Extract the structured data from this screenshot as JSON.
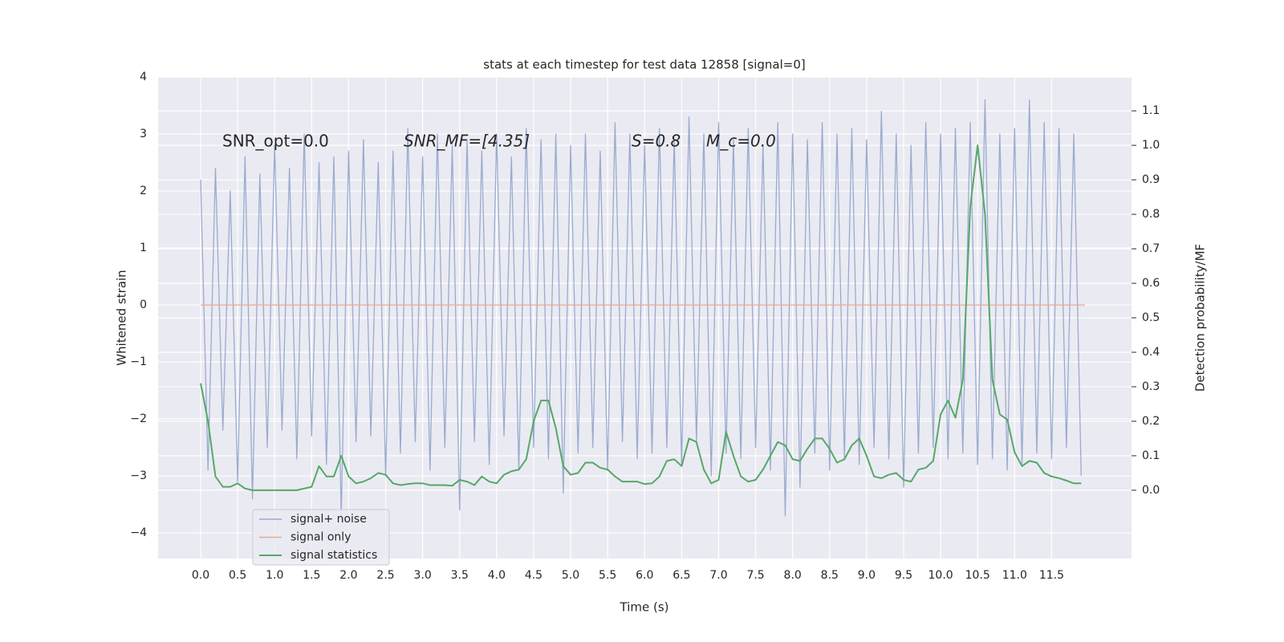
{
  "chart_data": {
    "type": "line",
    "title": "stats at each timestep for test data 12858 [signal=0]",
    "x_label": "Time (s)",
    "y_label": "Whitened strain",
    "y2_label": "Detection probability/MF",
    "annotations": [
      "SNR_opt=0.0",
      "SNR_MF=[4.35]",
      "S=0.8",
      "M_c=0.0"
    ],
    "grid": true,
    "legend": "lower left",
    "xlim": [
      -0.575,
      12.58
    ],
    "xticks": [
      {
        "value": 0,
        "label": "0.0"
      },
      {
        "value": 0.5,
        "label": "0.5"
      },
      {
        "value": 1,
        "label": "1.0"
      },
      {
        "value": 1.5,
        "label": "1.5"
      },
      {
        "value": 2,
        "label": "2.0"
      },
      {
        "value": 2.5,
        "label": "2.5"
      },
      {
        "value": 3,
        "label": "3.0"
      },
      {
        "value": 3.5,
        "label": "3.5"
      },
      {
        "value": 4,
        "label": "4.0"
      },
      {
        "value": 4.5,
        "label": "4.5"
      },
      {
        "value": 5,
        "label": "5.0"
      },
      {
        "value": 5.5,
        "label": "5.5"
      },
      {
        "value": 6,
        "label": "6.0"
      },
      {
        "value": 6.5,
        "label": "6.5"
      },
      {
        "value": 7,
        "label": "7.0"
      },
      {
        "value": 7.5,
        "label": "7.5"
      },
      {
        "value": 8,
        "label": "8.0"
      },
      {
        "value": 8.5,
        "label": "8.5"
      },
      {
        "value": 9,
        "label": "9.0"
      },
      {
        "value": 9.5,
        "label": "9.5"
      },
      {
        "value": 10,
        "label": "10.0"
      },
      {
        "value": 10.5,
        "label": "10.5"
      },
      {
        "value": 11,
        "label": "11.0"
      },
      {
        "value": 11.5,
        "label": "11.5"
      }
    ],
    "ylim": [
      -4.45,
      4.0
    ],
    "yticks": [
      {
        "value": -4,
        "label": "−4"
      },
      {
        "value": -3,
        "label": "−3"
      },
      {
        "value": -2,
        "label": "−2"
      },
      {
        "value": -1,
        "label": "−1"
      },
      0,
      1,
      2,
      3,
      4
    ],
    "y2lim": [
      -0.198,
      1.198
    ],
    "y2ticks": [
      {
        "value": 0,
        "label": "0.0"
      },
      {
        "value": 0.1,
        "label": "0.1"
      },
      {
        "value": 0.2,
        "label": "0.2"
      },
      {
        "value": 0.3,
        "label": "0.3"
      },
      {
        "value": 0.4,
        "label": "0.4"
      },
      {
        "value": 0.5,
        "label": "0.5"
      },
      {
        "value": 0.6,
        "label": "0.6"
      },
      {
        "value": 0.7,
        "label": "0.7"
      },
      {
        "value": 0.8,
        "label": "0.8"
      },
      {
        "value": 0.9,
        "label": "0.9"
      },
      {
        "value": 1,
        "label": "1.0"
      },
      {
        "value": 1.1,
        "label": "1.1"
      }
    ],
    "series": [
      {
        "name": "signal+ noise",
        "color": "#9aabd0",
        "axis": "y",
        "x": [
          0,
          0.1,
          0.2,
          0.3,
          0.4,
          0.5,
          0.6,
          0.7,
          0.8,
          0.9,
          1,
          1.1,
          1.2,
          1.3,
          1.4,
          1.5,
          1.6,
          1.7,
          1.8,
          1.9,
          2,
          2.1,
          2.2,
          2.3,
          2.4,
          2.5,
          2.6,
          2.7,
          2.8,
          2.9,
          3,
          3.1,
          3.2,
          3.3,
          3.4,
          3.5,
          3.6,
          3.7,
          3.8,
          3.9,
          4,
          4.1,
          4.2,
          4.3,
          4.4,
          4.5,
          4.6,
          4.7,
          4.8,
          4.9,
          5,
          5.1,
          5.2,
          5.3,
          5.4,
          5.5,
          5.6,
          5.7,
          5.8,
          5.9,
          6,
          6.1,
          6.2,
          6.3,
          6.4,
          6.5,
          6.6,
          6.7,
          6.8,
          6.9,
          7,
          7.1,
          7.2,
          7.3,
          7.4,
          7.5,
          7.6,
          7.7,
          7.8,
          7.9,
          8,
          8.1,
          8.2,
          8.3,
          8.4,
          8.5,
          8.6,
          8.7,
          8.8,
          8.9,
          9,
          9.1,
          9.2,
          9.3,
          9.4,
          9.5,
          9.6,
          9.7,
          9.8,
          9.9,
          10,
          10.1,
          10.2,
          10.3,
          10.4,
          10.5,
          10.6,
          10.7,
          10.8,
          10.9,
          11,
          11.1,
          11.2,
          11.3,
          11.4,
          11.5,
          11.6,
          11.7,
          11.8,
          11.9
        ],
        "values": [
          2.2,
          -2.9,
          2.4,
          -2.2,
          2.0,
          -3.1,
          2.6,
          -3.4,
          2.3,
          -2.5,
          2.8,
          -2.2,
          2.4,
          -2.7,
          3.0,
          -2.3,
          2.5,
          -2.8,
          2.6,
          -3.7,
          2.7,
          -2.4,
          2.9,
          -2.3,
          2.5,
          -3.0,
          2.7,
          -2.6,
          3.1,
          -2.4,
          2.6,
          -2.9,
          3.0,
          -2.5,
          2.8,
          -3.6,
          2.9,
          -2.4,
          2.7,
          -2.8,
          3.0,
          -2.3,
          2.6,
          -2.9,
          3.1,
          -2.5,
          2.9,
          -2.7,
          3.0,
          -3.3,
          2.8,
          -2.6,
          3.0,
          -2.5,
          2.7,
          -2.9,
          3.2,
          -2.4,
          3.0,
          -2.7,
          2.8,
          -2.6,
          3.1,
          -2.5,
          2.9,
          -2.8,
          3.3,
          -2.4,
          3.0,
          -3.0,
          3.2,
          -2.6,
          2.9,
          -2.7,
          3.1,
          -2.5,
          2.8,
          -2.9,
          3.2,
          -3.7,
          3.0,
          -3.2,
          2.9,
          -2.6,
          3.2,
          -2.9,
          3.0,
          -2.7,
          3.1,
          -2.8,
          2.9,
          -2.5,
          3.4,
          -2.7,
          3.0,
          -3.2,
          2.8,
          -2.6,
          3.2,
          -2.5,
          3.0,
          -2.7,
          3.1,
          -2.6,
          3.2,
          -2.8,
          3.6,
          -2.7,
          3.0,
          -2.9,
          3.1,
          -2.8,
          3.6,
          -2.6,
          3.2,
          -2.7,
          3.1,
          -2.5,
          3.0,
          -3.0
        ]
      },
      {
        "name": "signal only",
        "color": "#e8ab8f",
        "axis": "y",
        "x": [
          0,
          11.95
        ],
        "values": [
          0,
          0
        ]
      },
      {
        "name": "signal statistics",
        "color": "#55a868",
        "axis": "y2",
        "x": [
          0,
          0.1,
          0.2,
          0.3,
          0.4,
          0.5,
          0.6,
          0.7,
          0.8,
          0.9,
          1,
          1.1,
          1.2,
          1.3,
          1.4,
          1.5,
          1.6,
          1.7,
          1.8,
          1.9,
          2,
          2.1,
          2.2,
          2.3,
          2.4,
          2.5,
          2.6,
          2.7,
          2.8,
          2.9,
          3,
          3.1,
          3.2,
          3.3,
          3.4,
          3.5,
          3.6,
          3.7,
          3.8,
          3.9,
          4,
          4.1,
          4.2,
          4.3,
          4.4,
          4.5,
          4.6,
          4.7,
          4.8,
          4.9,
          5,
          5.1,
          5.2,
          5.3,
          5.4,
          5.5,
          5.6,
          5.7,
          5.8,
          5.9,
          6,
          6.1,
          6.2,
          6.3,
          6.4,
          6.5,
          6.6,
          6.7,
          6.8,
          6.9,
          7,
          7.1,
          7.2,
          7.3,
          7.4,
          7.5,
          7.6,
          7.7,
          7.8,
          7.9,
          8,
          8.1,
          8.2,
          8.3,
          8.4,
          8.5,
          8.6,
          8.7,
          8.8,
          8.9,
          9,
          9.1,
          9.2,
          9.3,
          9.4,
          9.5,
          9.6,
          9.7,
          9.8,
          9.9,
          10,
          10.1,
          10.2,
          10.3,
          10.4,
          10.5,
          10.6,
          10.7,
          10.8,
          10.9,
          11,
          11.1,
          11.2,
          11.3,
          11.4,
          11.5,
          11.6,
          11.7,
          11.8,
          11.9
        ],
        "values": [
          0.31,
          0.2,
          0.04,
          0.01,
          0.01,
          0.02,
          0.005,
          0,
          0,
          0,
          0,
          0,
          0,
          0,
          0.005,
          0.01,
          0.07,
          0.04,
          0.04,
          0.1,
          0.04,
          0.02,
          0.025,
          0.035,
          0.05,
          0.045,
          0.02,
          0.015,
          0.018,
          0.02,
          0.02,
          0.015,
          0.015,
          0.015,
          0.013,
          0.03,
          0.025,
          0.015,
          0.04,
          0.025,
          0.02,
          0.045,
          0.055,
          0.06,
          0.09,
          0.2,
          0.26,
          0.26,
          0.18,
          0.07,
          0.045,
          0.05,
          0.08,
          0.08,
          0.065,
          0.06,
          0.04,
          0.025,
          0.025,
          0.025,
          0.018,
          0.02,
          0.04,
          0.085,
          0.09,
          0.07,
          0.15,
          0.14,
          0.06,
          0.02,
          0.03,
          0.17,
          0.1,
          0.04,
          0.025,
          0.03,
          0.06,
          0.1,
          0.14,
          0.13,
          0.09,
          0.085,
          0.12,
          0.15,
          0.15,
          0.12,
          0.08,
          0.09,
          0.13,
          0.15,
          0.1,
          0.04,
          0.035,
          0.045,
          0.05,
          0.03,
          0.025,
          0.06,
          0.065,
          0.085,
          0.22,
          0.26,
          0.21,
          0.32,
          0.82,
          1.0,
          0.8,
          0.32,
          0.22,
          0.205,
          0.11,
          0.07,
          0.085,
          0.08,
          0.05,
          0.04,
          0.035,
          0.028,
          0.02,
          0.02
        ]
      }
    ]
  }
}
